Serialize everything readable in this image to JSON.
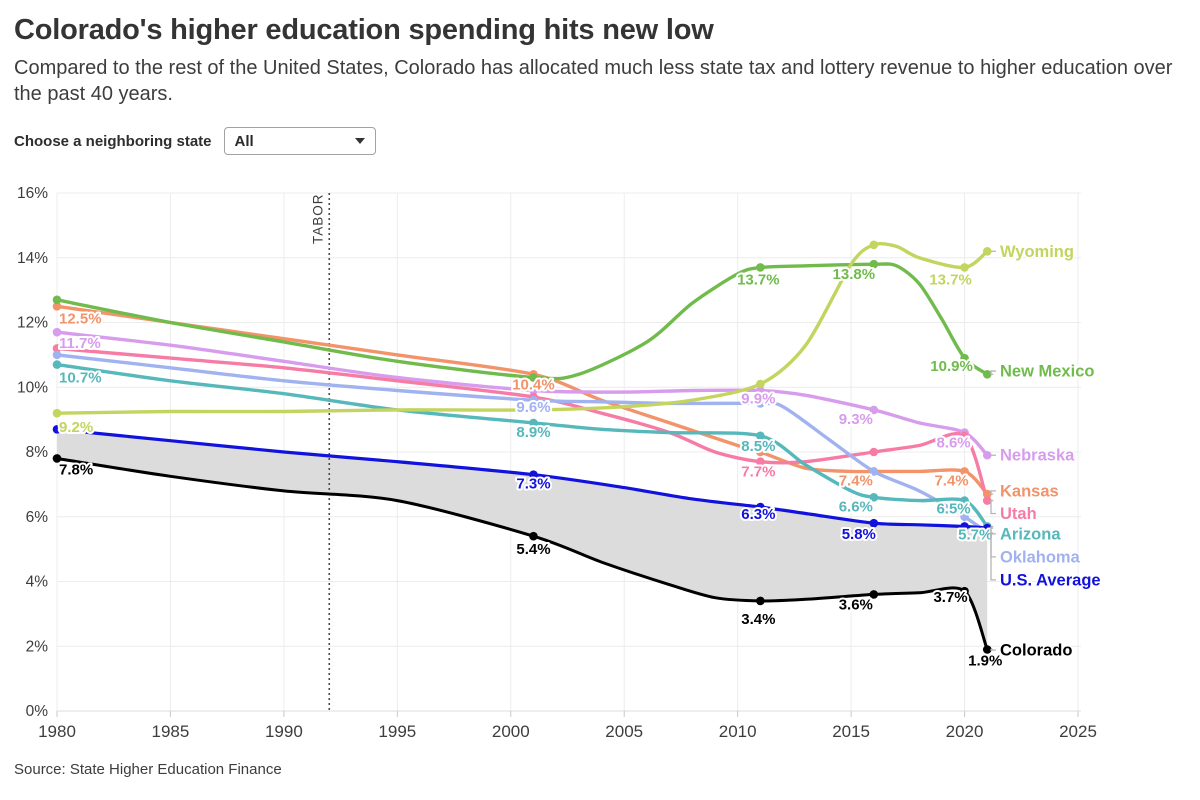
{
  "header": {
    "title": "Colorado's higher education spending hits new low",
    "subtitle": "Compared to the rest of the United States, Colorado has allocated much less state tax and lottery revenue to higher education over the past 40 years."
  },
  "controls": {
    "label": "Choose a neighboring state",
    "value": "All"
  },
  "source": "Source: State Higher Education Finance",
  "chart_data": {
    "type": "line",
    "ylabel": "",
    "xlabel": "",
    "xlim": [
      1980,
      2025
    ],
    "ylim": [
      0,
      16
    ],
    "xticks": [
      1980,
      1985,
      1990,
      1995,
      2000,
      2005,
      2010,
      2015,
      2020,
      2025
    ],
    "yticks": [
      0,
      2,
      4,
      6,
      8,
      10,
      12,
      14,
      16
    ],
    "ytick_suffix": "%",
    "grid": true,
    "annotation": {
      "text": "TABOR",
      "year": 1992
    },
    "marker_years": [
      1980,
      2001,
      2011,
      2016,
      2020,
      2021
    ],
    "band": {
      "between": [
        "U.S. Average",
        "Colorado"
      ],
      "color": "#dcdcdc"
    },
    "colors": {
      "grid": "#ececec",
      "baseline": "#dddddd",
      "tick": "#c9c9c9",
      "axis_text": "#3d3d3d",
      "tabor": "#4a4a4a",
      "leader": "#b5b5b5"
    },
    "series": [
      {
        "name": "Kansas",
        "color": "#f2936a",
        "stroke_width": 3.4,
        "points": [
          [
            1980,
            12.5
          ],
          [
            1985,
            12.0
          ],
          [
            1990,
            11.5
          ],
          [
            1995,
            11.0
          ],
          [
            2001,
            10.4
          ],
          [
            2004,
            9.6
          ],
          [
            2007,
            8.9
          ],
          [
            2010,
            8.2
          ],
          [
            2011,
            8.0
          ],
          [
            2013,
            7.5
          ],
          [
            2015,
            7.4
          ],
          [
            2016,
            7.4
          ],
          [
            2018,
            7.4
          ],
          [
            2020,
            7.4
          ],
          [
            2021,
            6.7
          ]
        ],
        "value_labels": [
          {
            "year": 1980,
            "text": "12.5%",
            "dx": 2,
            "dy": 17,
            "anchor": "start"
          },
          {
            "year": 2001,
            "text": "10.4%",
            "dx": 0,
            "dy": 15,
            "anchor": "middle"
          },
          {
            "year": 2016,
            "text": "7.4%",
            "dx": -18,
            "dy": 14,
            "anchor": "middle"
          },
          {
            "year": 2020,
            "text": "7.4%",
            "dx": -13,
            "dy": 14,
            "anchor": "middle"
          }
        ],
        "end_label": "Kansas",
        "end_label_y": 6.8
      },
      {
        "name": "Nebraska",
        "color": "#d89ced",
        "stroke_width": 3.4,
        "points": [
          [
            1980,
            11.7
          ],
          [
            1985,
            11.3
          ],
          [
            1990,
            10.8
          ],
          [
            1995,
            10.3
          ],
          [
            2001,
            9.9
          ],
          [
            2005,
            9.85
          ],
          [
            2008,
            9.9
          ],
          [
            2011,
            9.9
          ],
          [
            2013,
            9.75
          ],
          [
            2016,
            9.3
          ],
          [
            2018,
            8.9
          ],
          [
            2020,
            8.6
          ],
          [
            2021,
            7.9
          ]
        ],
        "value_labels": [
          {
            "year": 1980,
            "text": "11.7%",
            "dx": 2,
            "dy": 16,
            "anchor": "start"
          },
          {
            "year": 2011,
            "text": "9.9%",
            "dx": -2,
            "dy": 13,
            "anchor": "middle"
          },
          {
            "year": 2016,
            "text": "9.3%",
            "dx": -18,
            "dy": 14,
            "anchor": "middle"
          },
          {
            "year": 2020,
            "text": "8.6%",
            "dx": -11,
            "dy": 15,
            "anchor": "middle"
          }
        ],
        "end_label": "Nebraska",
        "end_label_y": 7.9
      },
      {
        "name": "Utah",
        "color": "#f67ca6",
        "stroke_width": 3.4,
        "points": [
          [
            1980,
            11.2
          ],
          [
            1985,
            10.9
          ],
          [
            1990,
            10.6
          ],
          [
            1995,
            10.2
          ],
          [
            2001,
            9.7
          ],
          [
            2004,
            9.2
          ],
          [
            2007,
            8.6
          ],
          [
            2009,
            8.0
          ],
          [
            2011,
            7.7
          ],
          [
            2013,
            7.7
          ],
          [
            2016,
            8.0
          ],
          [
            2018,
            8.2
          ],
          [
            2020,
            8.5
          ],
          [
            2021,
            6.5
          ]
        ],
        "value_labels": [
          {
            "year": 2011,
            "text": "7.7%",
            "dx": -2,
            "dy": 15,
            "anchor": "middle"
          }
        ],
        "end_label": "Utah",
        "end_label_y": 6.1
      },
      {
        "name": "Oklahoma",
        "color": "#a0b2f0",
        "stroke_width": 3.4,
        "points": [
          [
            1980,
            11.0
          ],
          [
            1985,
            10.6
          ],
          [
            1990,
            10.2
          ],
          [
            1995,
            9.9
          ],
          [
            2001,
            9.6
          ],
          [
            2004,
            9.55
          ],
          [
            2007,
            9.5
          ],
          [
            2011,
            9.5
          ],
          [
            2012,
            9.4
          ],
          [
            2014,
            8.4
          ],
          [
            2016,
            7.4
          ],
          [
            2018,
            6.8
          ],
          [
            2020,
            6.0
          ],
          [
            2021,
            5.5
          ]
        ],
        "value_labels": [
          {
            "year": 2001,
            "text": "9.6%",
            "dx": 0,
            "dy": 12,
            "anchor": "middle"
          }
        ],
        "end_label": "Oklahoma",
        "end_label_y": 4.76
      },
      {
        "name": "Arizona",
        "color": "#56b8ba",
        "stroke_width": 3.4,
        "points": [
          [
            1980,
            10.7
          ],
          [
            1985,
            10.2
          ],
          [
            1990,
            9.8
          ],
          [
            1995,
            9.3
          ],
          [
            2001,
            8.9
          ],
          [
            2004,
            8.7
          ],
          [
            2007,
            8.6
          ],
          [
            2011,
            8.5
          ],
          [
            2013,
            7.6
          ],
          [
            2015,
            6.8
          ],
          [
            2016,
            6.6
          ],
          [
            2018,
            6.5
          ],
          [
            2020,
            6.5
          ],
          [
            2021,
            5.7
          ]
        ],
        "value_labels": [
          {
            "year": 1980,
            "text": "10.7%",
            "dx": 2,
            "dy": 18,
            "anchor": "start"
          },
          {
            "year": 2001,
            "text": "8.9%",
            "dx": 0,
            "dy": 14,
            "anchor": "middle"
          },
          {
            "year": 2011,
            "text": "8.5%",
            "dx": -2,
            "dy": 15,
            "anchor": "middle"
          },
          {
            "year": 2016,
            "text": "6.6%",
            "dx": -18,
            "dy": 14,
            "anchor": "middle"
          },
          {
            "year": 2020,
            "text": "6.5%",
            "dx": -11,
            "dy": 13,
            "anchor": "middle"
          },
          {
            "year": 2021,
            "text": "5.7%",
            "dx": -12,
            "dy": 13,
            "anchor": "middle"
          }
        ],
        "end_label": "Arizona",
        "end_label_y": 5.47
      },
      {
        "name": "New Mexico",
        "color": "#70bb4c",
        "stroke_width": 3.4,
        "points": [
          [
            1980,
            12.7
          ],
          [
            1985,
            12.0
          ],
          [
            1990,
            11.4
          ],
          [
            1995,
            10.8
          ],
          [
            2001,
            10.3
          ],
          [
            2003,
            10.4
          ],
          [
            2006,
            11.4
          ],
          [
            2008,
            12.6
          ],
          [
            2010,
            13.5
          ],
          [
            2011,
            13.7
          ],
          [
            2013,
            13.75
          ],
          [
            2016,
            13.8
          ],
          [
            2017,
            13.75
          ],
          [
            2018,
            13.2
          ],
          [
            2019,
            12.1
          ],
          [
            2020,
            10.9
          ],
          [
            2021,
            10.4
          ]
        ],
        "value_labels": [
          {
            "year": 2011,
            "text": "13.7%",
            "dx": -2,
            "dy": 17,
            "anchor": "middle"
          },
          {
            "year": 2016,
            "text": "13.8%",
            "dx": -20,
            "dy": 15,
            "anchor": "middle"
          },
          {
            "year": 2020,
            "text": "10.9%",
            "dx": -13,
            "dy": 13,
            "anchor": "middle"
          }
        ],
        "end_label": "New Mexico",
        "end_label_y": 10.5
      },
      {
        "name": "Wyoming",
        "color": "#c3d45f",
        "stroke_width": 3.4,
        "points": [
          [
            1980,
            9.2
          ],
          [
            1985,
            9.25
          ],
          [
            1990,
            9.25
          ],
          [
            1995,
            9.3
          ],
          [
            2001,
            9.3
          ],
          [
            2005,
            9.4
          ],
          [
            2008,
            9.6
          ],
          [
            2011,
            10.1
          ],
          [
            2013,
            11.3
          ],
          [
            2015,
            13.8
          ],
          [
            2016,
            14.4
          ],
          [
            2017,
            14.35
          ],
          [
            2018,
            14.0
          ],
          [
            2020,
            13.7
          ],
          [
            2021,
            14.2
          ]
        ],
        "value_labels": [
          {
            "year": 1980,
            "text": "9.2%",
            "dx": 2,
            "dy": 19,
            "anchor": "start"
          },
          {
            "year": 2020,
            "text": "13.7%",
            "dx": -14,
            "dy": 17,
            "anchor": "middle"
          }
        ],
        "end_label": "Wyoming",
        "end_label_y": 14.2
      },
      {
        "name": "U.S. Average",
        "color": "#1212dd",
        "stroke_width": 3.2,
        "points": [
          [
            1980,
            8.7
          ],
          [
            1985,
            8.35
          ],
          [
            1990,
            8.0
          ],
          [
            1995,
            7.7
          ],
          [
            2001,
            7.3
          ],
          [
            2005,
            6.9
          ],
          [
            2008,
            6.55
          ],
          [
            2011,
            6.3
          ],
          [
            2013,
            6.1
          ],
          [
            2016,
            5.8
          ],
          [
            2018,
            5.75
          ],
          [
            2020,
            5.7
          ],
          [
            2021,
            5.65
          ]
        ],
        "value_labels": [
          {
            "year": 2001,
            "text": "7.3%",
            "dx": 0,
            "dy": 14,
            "anchor": "middle"
          },
          {
            "year": 2011,
            "text": "6.3%",
            "dx": -2,
            "dy": 12,
            "anchor": "middle"
          },
          {
            "year": 2016,
            "text": "5.8%",
            "dx": -15,
            "dy": 16,
            "anchor": "middle"
          }
        ],
        "end_label": "U.S. Average",
        "end_label_y": 4.05
      },
      {
        "name": "Colorado",
        "color": "#000000",
        "stroke_width": 3.0,
        "points": [
          [
            1980,
            7.8
          ],
          [
            1985,
            7.25
          ],
          [
            1990,
            6.8
          ],
          [
            1995,
            6.5
          ],
          [
            2001,
            5.4
          ],
          [
            2004,
            4.6
          ],
          [
            2007,
            3.9
          ],
          [
            2009,
            3.5
          ],
          [
            2011,
            3.4
          ],
          [
            2013,
            3.45
          ],
          [
            2016,
            3.6
          ],
          [
            2018,
            3.65
          ],
          [
            2020,
            3.7
          ],
          [
            2021,
            1.9
          ]
        ],
        "value_labels": [
          {
            "year": 1980,
            "text": "7.8%",
            "dx": 2,
            "dy": 16,
            "anchor": "start"
          },
          {
            "year": 2001,
            "text": "5.4%",
            "dx": 0,
            "dy": 18,
            "anchor": "middle"
          },
          {
            "year": 2011,
            "text": "3.4%",
            "dx": -2,
            "dy": 23,
            "anchor": "middle"
          },
          {
            "year": 2016,
            "text": "3.6%",
            "dx": -18,
            "dy": 15,
            "anchor": "middle"
          },
          {
            "year": 2020,
            "text": "3.7%",
            "dx": -14,
            "dy": 11,
            "anchor": "middle"
          },
          {
            "year": 2021,
            "text": "1.9%",
            "dx": -2,
            "dy": 16,
            "anchor": "middle"
          }
        ],
        "end_label": "Colorado",
        "end_label_y": 1.88
      }
    ]
  }
}
